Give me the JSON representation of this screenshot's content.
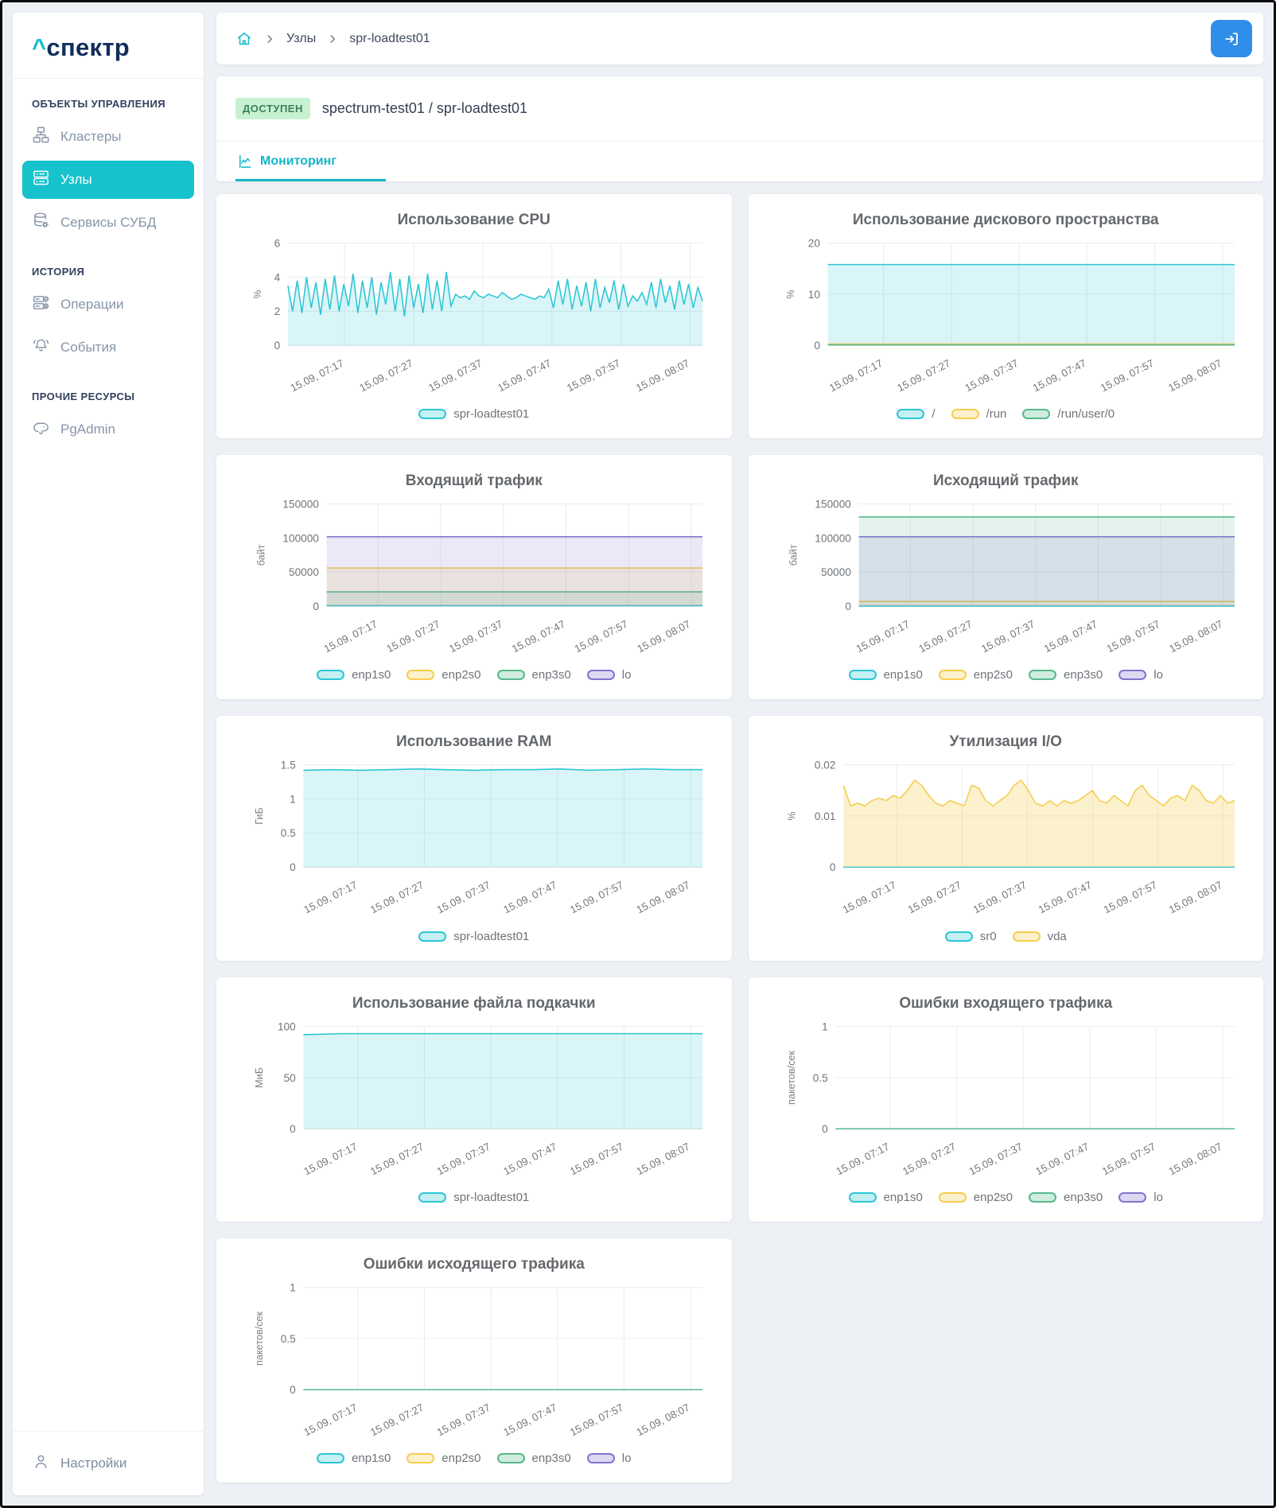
{
  "sidebar": {
    "logo": {
      "caret": "^",
      "text": "спектр"
    },
    "sections": [
      {
        "title": "ОБЪЕКТЫ УПРАВЛЕНИЯ",
        "items": [
          {
            "label": "Кластеры",
            "icon": "cluster-icon",
            "active": false
          },
          {
            "label": "Узлы",
            "icon": "nodes-icon",
            "active": true
          },
          {
            "label": "Сервисы СУБД",
            "icon": "database-gear-icon",
            "active": false
          }
        ]
      },
      {
        "title": "ИСТОРИЯ",
        "items": [
          {
            "label": "Операции",
            "icon": "operations-icon",
            "active": false
          },
          {
            "label": "События",
            "icon": "bell-icon",
            "active": false
          }
        ]
      },
      {
        "title": "ПРОЧИЕ РЕСУРСЫ",
        "items": [
          {
            "label": "PgAdmin",
            "icon": "pgadmin-elephant-icon",
            "active": false
          }
        ]
      }
    ],
    "footer": {
      "label": "Настройки",
      "icon": "user-icon"
    }
  },
  "breadcrumb": {
    "items": [
      "Узлы",
      "spr-loadtest01"
    ]
  },
  "header": {
    "status": "ДОСТУПЕН",
    "host_path": "spectrum-test01 / spr-loadtest01"
  },
  "tabs": [
    {
      "label": "Мониторинг",
      "active": true
    }
  ],
  "palette": {
    "teal": "#2cc6d4",
    "yellow": "#f6cd4c",
    "green": "#57b98c",
    "purple": "#8274cc",
    "accent": "#16c2cc",
    "badge_green_bg": "#c8f1d1",
    "button_blue": "#2f8ee9"
  },
  "chart_data": [
    {
      "type": "area",
      "title": "Использование CPU",
      "ylabel": "%",
      "ymax": 6,
      "yticks": [
        0,
        2,
        4,
        6
      ],
      "categories": [
        "15.09, 07:17",
        "15.09, 07:27",
        "15.09, 07:37",
        "15.09, 07:47",
        "15.09, 07:57",
        "15.09, 08:07"
      ],
      "series": [
        {
          "name": "spr-loadtest01",
          "color": "#2cc6d4",
          "fill_opacity": 0.18,
          "values": [
            3.5,
            2.0,
            3.8,
            1.9,
            4.0,
            2.2,
            3.7,
            1.8,
            3.9,
            2.1,
            4.1,
            2.0,
            3.6,
            2.3,
            4.2,
            1.9,
            3.8,
            2.2,
            4.0,
            1.8,
            3.7,
            2.4,
            4.3,
            2.0,
            3.9,
            1.7,
            4.1,
            2.2,
            3.6,
            1.9,
            4.2,
            2.1,
            3.8,
            2.0,
            4.3,
            2.3,
            3.0,
            2.8,
            2.9,
            2.7,
            3.2,
            2.9,
            2.8,
            3.0,
            2.9,
            2.8,
            3.1,
            2.9,
            2.7,
            2.8,
            3.0,
            2.9,
            2.8,
            2.7,
            2.9,
            2.8,
            3.3,
            2.2,
            3.8,
            2.4,
            3.9,
            2.1,
            3.5,
            2.3,
            3.7,
            2.0,
            3.9,
            2.2,
            3.4,
            2.5,
            3.8,
            2.1,
            3.6,
            2.3,
            2.9,
            2.6,
            3.1,
            2.4,
            3.7,
            2.2,
            3.9,
            2.5,
            3.5,
            2.1,
            3.8,
            2.4,
            3.6,
            2.2,
            3.4,
            2.6
          ]
        }
      ]
    },
    {
      "type": "area",
      "title": "Использование дискового пространства",
      "ylabel": "%",
      "ymax": 20,
      "yticks": [
        0,
        10,
        20
      ],
      "categories": [
        "15.09, 07:17",
        "15.09, 07:27",
        "15.09, 07:37",
        "15.09, 07:47",
        "15.09, 07:57",
        "15.09, 08:07"
      ],
      "series": [
        {
          "name": "/",
          "color": "#2cc6d4",
          "fill_opacity": 0.18,
          "values": [
            15.8
          ]
        },
        {
          "name": "/run",
          "color": "#f6cd4c",
          "fill_opacity": 0.2,
          "values": [
            0.25
          ]
        },
        {
          "name": "/run/user/0",
          "color": "#57b98c",
          "fill_opacity": 0.2,
          "values": [
            0.1
          ]
        }
      ]
    },
    {
      "type": "area",
      "title": "Входящий трафик",
      "ylabel": "байт",
      "ymax": 150000,
      "yticks": [
        0,
        50000,
        100000,
        150000
      ],
      "categories": [
        "15.09, 07:17",
        "15.09, 07:27",
        "15.09, 07:37",
        "15.09, 07:47",
        "15.09, 07:57",
        "15.09, 08:07"
      ],
      "series": [
        {
          "name": "enp1s0",
          "color": "#2cc6d4",
          "fill_opacity": 0.16,
          "values": [
            900
          ]
        },
        {
          "name": "enp2s0",
          "color": "#f6cd4c",
          "fill_opacity": 0.16,
          "values": [
            56000
          ]
        },
        {
          "name": "enp3s0",
          "color": "#57b98c",
          "fill_opacity": 0.16,
          "values": [
            21000
          ]
        },
        {
          "name": "lo",
          "color": "#8274cc",
          "fill_opacity": 0.16,
          "values": [
            102000
          ]
        }
      ]
    },
    {
      "type": "area",
      "title": "Исходящий трафик",
      "ylabel": "байт",
      "ymax": 150000,
      "yticks": [
        0,
        50000,
        100000,
        150000
      ],
      "categories": [
        "15.09, 07:17",
        "15.09, 07:27",
        "15.09, 07:37",
        "15.09, 07:47",
        "15.09, 07:57",
        "15.09, 08:07"
      ],
      "series": [
        {
          "name": "enp1s0",
          "color": "#2cc6d4",
          "fill_opacity": 0.16,
          "values": [
            300
          ]
        },
        {
          "name": "enp2s0",
          "color": "#f6cd4c",
          "fill_opacity": 0.16,
          "values": [
            7000
          ]
        },
        {
          "name": "enp3s0",
          "color": "#57b98c",
          "fill_opacity": 0.16,
          "values": [
            131000
          ]
        },
        {
          "name": "lo",
          "color": "#8274cc",
          "fill_opacity": 0.16,
          "values": [
            102000
          ]
        }
      ]
    },
    {
      "type": "area",
      "title": "Использование RAM",
      "ylabel": "ГиБ",
      "ymax": 1.5,
      "yticks": [
        0,
        0.5,
        1,
        1.5
      ],
      "categories": [
        "15.09, 07:17",
        "15.09, 07:27",
        "15.09, 07:37",
        "15.09, 07:47",
        "15.09, 07:57",
        "15.09, 08:07"
      ],
      "series": [
        {
          "name": "spr-loadtest01",
          "color": "#2cc6d4",
          "fill_opacity": 0.18,
          "values": [
            1.42,
            1.43,
            1.42,
            1.43,
            1.44,
            1.43,
            1.42,
            1.43,
            1.43,
            1.44,
            1.42,
            1.43,
            1.44,
            1.43,
            1.43
          ]
        }
      ]
    },
    {
      "type": "area",
      "title": "Утилизация I/O",
      "ylabel": "%",
      "ymax": 0.02,
      "yticks": [
        0,
        0.01,
        0.02
      ],
      "categories": [
        "15.09, 07:17",
        "15.09, 07:27",
        "15.09, 07:37",
        "15.09, 07:47",
        "15.09, 07:57",
        "15.09, 08:07"
      ],
      "series": [
        {
          "name": "sr0",
          "color": "#2cc6d4",
          "fill_opacity": 0.16,
          "values": [
            0
          ]
        },
        {
          "name": "vda",
          "color": "#f6cd4c",
          "fill_opacity": 0.28,
          "values": [
            0.016,
            0.012,
            0.0125,
            0.012,
            0.013,
            0.0135,
            0.013,
            0.014,
            0.0135,
            0.015,
            0.017,
            0.016,
            0.014,
            0.0125,
            0.012,
            0.013,
            0.0125,
            0.012,
            0.016,
            0.0155,
            0.013,
            0.012,
            0.013,
            0.014,
            0.016,
            0.017,
            0.015,
            0.0125,
            0.012,
            0.013,
            0.012,
            0.013,
            0.0125,
            0.013,
            0.014,
            0.015,
            0.013,
            0.0125,
            0.014,
            0.013,
            0.012,
            0.015,
            0.016,
            0.014,
            0.013,
            0.012,
            0.0135,
            0.014,
            0.013,
            0.016,
            0.015,
            0.013,
            0.0125,
            0.014,
            0.0125,
            0.013
          ]
        }
      ]
    },
    {
      "type": "area",
      "title": "Использование файла подкачки",
      "ylabel": "МиБ",
      "ymax": 100,
      "yticks": [
        0,
        50,
        100
      ],
      "categories": [
        "15.09, 07:17",
        "15.09, 07:27",
        "15.09, 07:37",
        "15.09, 07:47",
        "15.09, 07:57",
        "15.09, 08:07"
      ],
      "series": [
        {
          "name": "spr-loadtest01",
          "color": "#2cc6d4",
          "fill_opacity": 0.18,
          "values": [
            92,
            93,
            93,
            93,
            93,
            93,
            93,
            93,
            93,
            93,
            93,
            93
          ]
        }
      ]
    },
    {
      "type": "area",
      "title": "Ошибки входящего трафика",
      "ylabel": "пакетов/сек",
      "ymax": 1,
      "yticks": [
        0,
        0.5,
        1
      ],
      "categories": [
        "15.09, 07:17",
        "15.09, 07:27",
        "15.09, 07:37",
        "15.09, 07:47",
        "15.09, 07:57",
        "15.09, 08:07"
      ],
      "legend": [
        "enp1s0",
        "enp2s0",
        "enp3s0",
        "lo"
      ],
      "series": [
        {
          "name": "enp1s0",
          "color": "#2cc6d4",
          "fill_opacity": 0.16,
          "values": [
            0
          ]
        },
        {
          "name": "enp2s0",
          "color": "#f6cd4c",
          "fill_opacity": 0.16,
          "values": [
            0
          ]
        },
        {
          "name": "lo",
          "color": "#8274cc",
          "fill_opacity": 0.16,
          "values": [
            0
          ]
        },
        {
          "name": "enp3s0",
          "color": "#57b98c",
          "fill_opacity": 0.16,
          "values": [
            0
          ]
        }
      ]
    },
    {
      "type": "area",
      "title": "Ошибки исходящего трафика",
      "ylabel": "пакетов/сек",
      "ymax": 1,
      "yticks": [
        0,
        0.5,
        1
      ],
      "categories": [
        "15.09, 07:17",
        "15.09, 07:27",
        "15.09, 07:37",
        "15.09, 07:47",
        "15.09, 07:57",
        "15.09, 08:07"
      ],
      "legend": [
        "enp1s0",
        "enp2s0",
        "enp3s0",
        "lo"
      ],
      "series": [
        {
          "name": "enp1s0",
          "color": "#2cc6d4",
          "fill_opacity": 0.16,
          "values": [
            0
          ]
        },
        {
          "name": "enp2s0",
          "color": "#f6cd4c",
          "fill_opacity": 0.16,
          "values": [
            0
          ]
        },
        {
          "name": "lo",
          "color": "#8274cc",
          "fill_opacity": 0.16,
          "values": [
            0
          ]
        },
        {
          "name": "enp3s0",
          "color": "#57b98c",
          "fill_opacity": 0.16,
          "values": [
            0
          ]
        }
      ]
    }
  ]
}
